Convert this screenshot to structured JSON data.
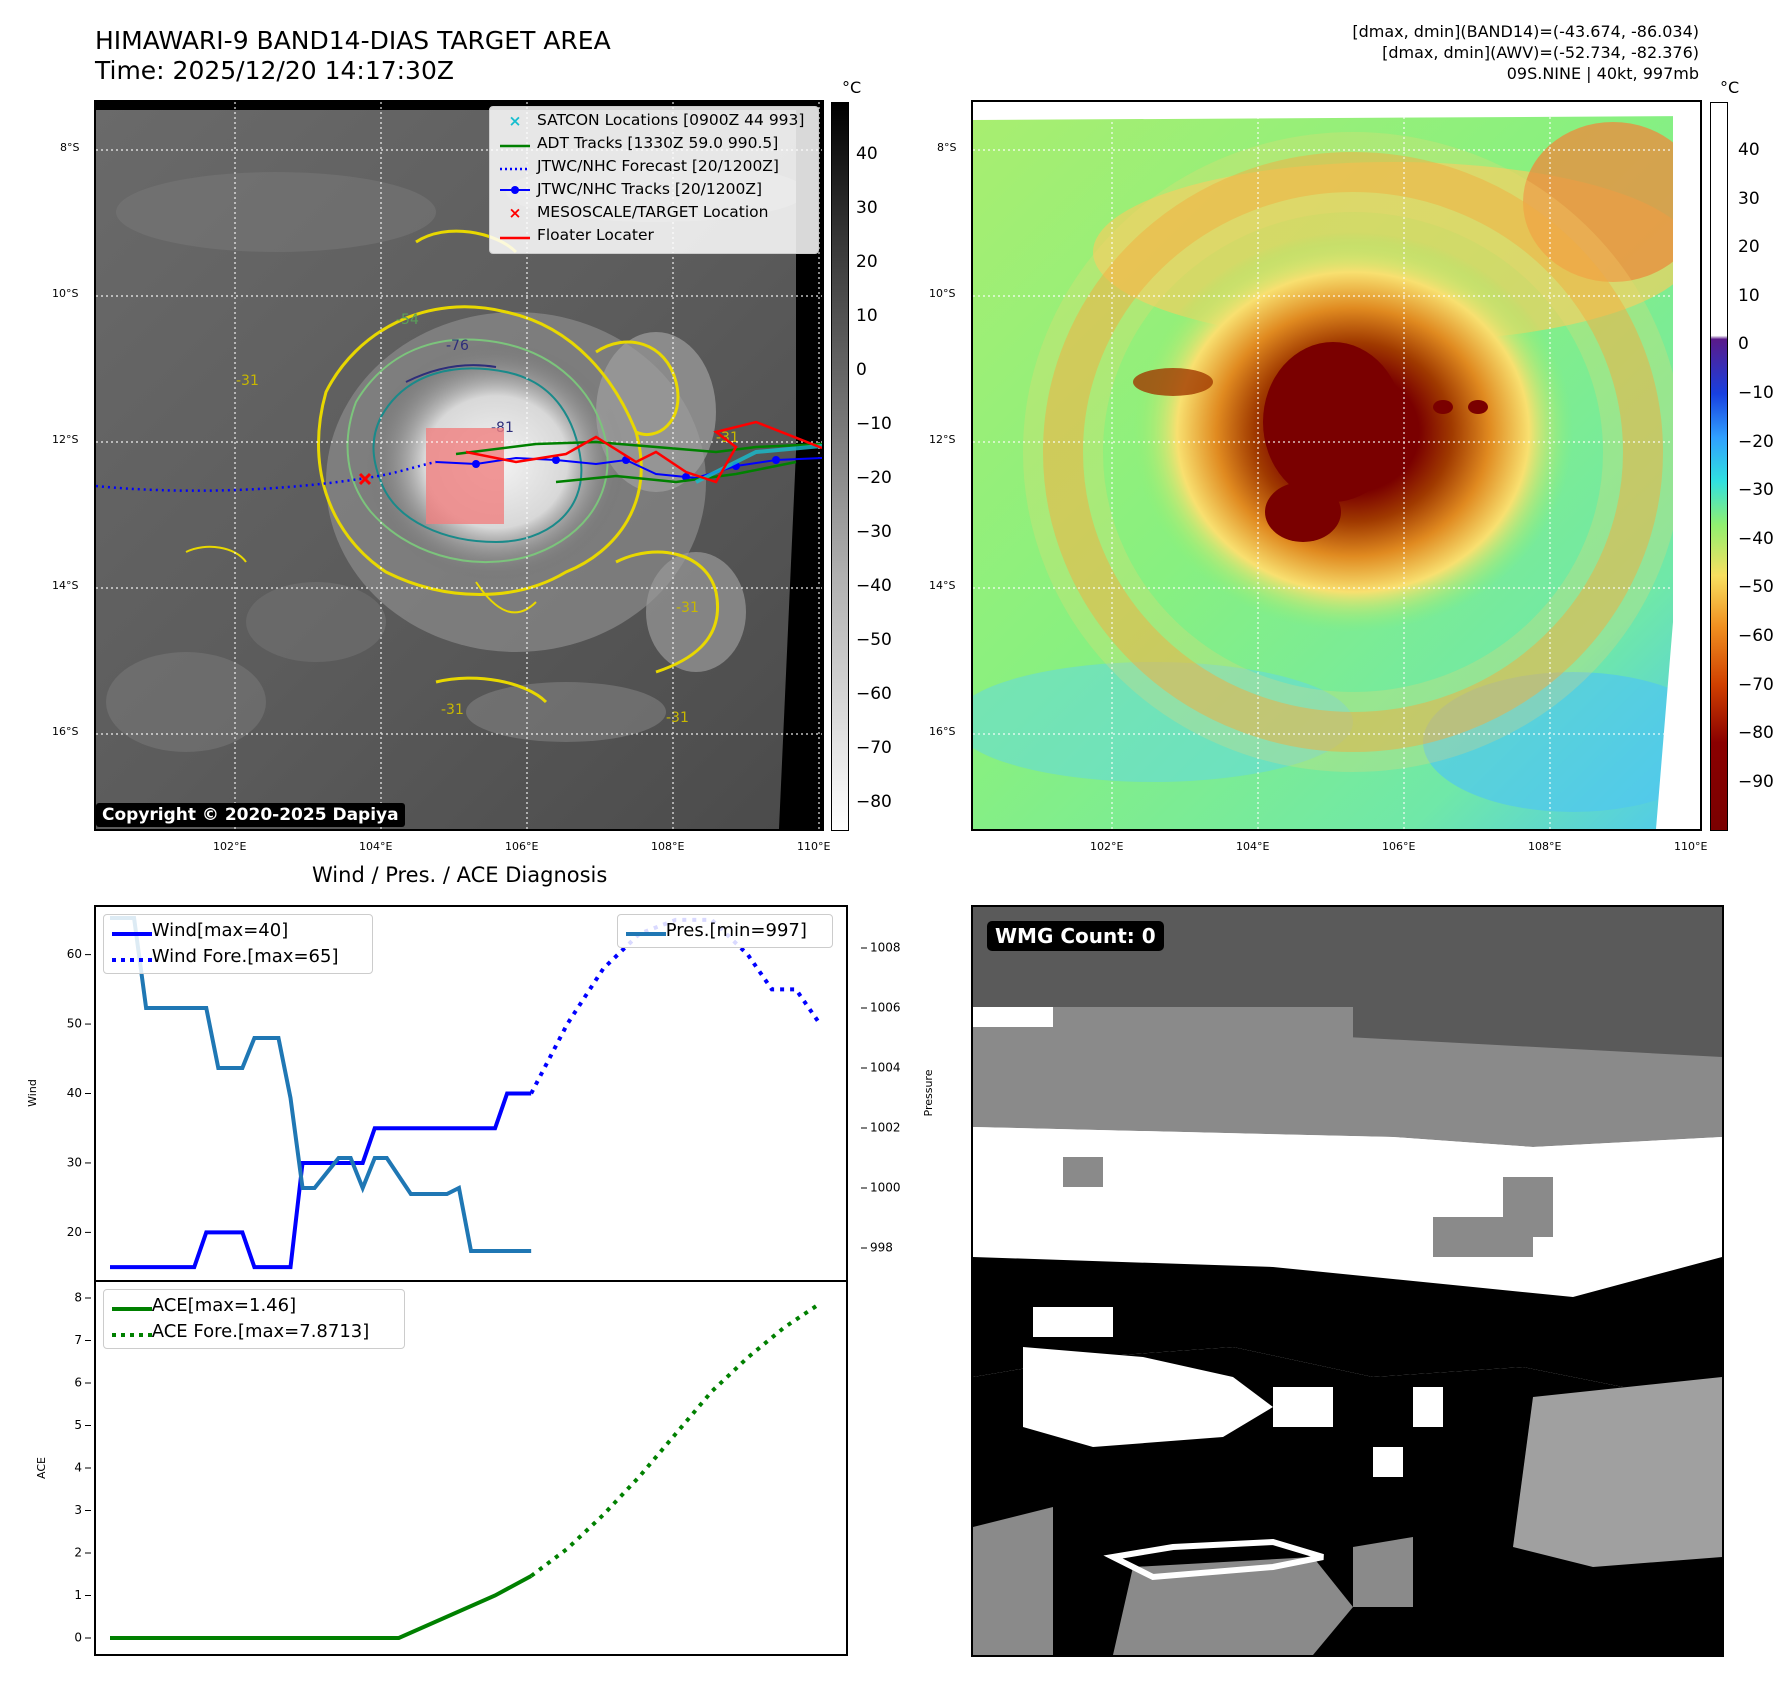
{
  "header": {
    "title_line1": "HIMAWARI-9 BAND14-DIAS TARGET AREA",
    "title_line2": "Time: 2025/12/20 14:17:30Z",
    "info_line1": "[dmax, dmin](BAND14)=(-43.674, -86.034)",
    "info_line2": "[dmax, dmin](AWV)=(-52.734, -82.376)",
    "info_line3": "09S.NINE | 40kt, 997mb"
  },
  "map": {
    "lat_labels": [
      "8°S",
      "10°S",
      "12°S",
      "14°S",
      "16°S"
    ],
    "lon_labels": [
      "102°E",
      "104°E",
      "106°E",
      "108°E",
      "110°E"
    ],
    "copyright": "Copyright © 2020-2025 Dapiya",
    "contour_labels": [
      "-76",
      "-54",
      "-31",
      "-31",
      "-31",
      "-81",
      "-31",
      "-31"
    ]
  },
  "legend": {
    "items": [
      {
        "label": "SATCON Locations [0900Z 44 993]",
        "color": "#17becf",
        "symbol": "x"
      },
      {
        "label": "ADT Tracks [1330Z 59.0 990.5]",
        "color": "#008000",
        "symbol": "line"
      },
      {
        "label": "JTWC/NHC Forecast [20/1200Z]",
        "color": "#0000ff",
        "symbol": "dotted"
      },
      {
        "label": "JTWC/NHC Tracks [20/1200Z]",
        "color": "#0000ff",
        "symbol": "line-dot"
      },
      {
        "label": "MESOSCALE/TARGET Location",
        "color": "#ff0000",
        "symbol": "x"
      },
      {
        "label": "Floater Locater",
        "color": "#ff0000",
        "symbol": "line"
      }
    ]
  },
  "colorbar_gray": {
    "unit": "°C",
    "ticks": [
      "40",
      "30",
      "20",
      "10",
      "0",
      "−10",
      "−20",
      "−30",
      "−40",
      "−50",
      "−60",
      "−70",
      "−80"
    ]
  },
  "colorbar_color": {
    "unit": "°C",
    "ticks": [
      "40",
      "30",
      "20",
      "10",
      "0",
      "−10",
      "−20",
      "−30",
      "−40",
      "−50",
      "−60",
      "−70",
      "−80",
      "−90"
    ]
  },
  "wmg": {
    "label": "WMG Count: 0"
  },
  "diagnosis": {
    "title": "Wind / Pres. / ACE Diagnosis",
    "wind_ylabel": "Wind",
    "pres_ylabel": "Pressure",
    "ace_ylabel": "ACE",
    "legend_wind": "Wind[max=40]",
    "legend_wind_fore": "Wind Fore.[max=65]",
    "legend_pres": "Pres.[min=997]",
    "legend_ace": "ACE[max=1.46]",
    "legend_ace_fore": "ACE Fore.[max=7.8713]",
    "wind_ticks": [
      "60",
      "50",
      "40",
      "30",
      "20"
    ],
    "pres_ticks": [
      "1008",
      "1006",
      "1004",
      "1002",
      "1000",
      "998"
    ],
    "ace_ticks": [
      "8",
      "7",
      "6",
      "5",
      "4",
      "3",
      "2",
      "1",
      "0"
    ]
  },
  "chart_data": [
    {
      "type": "line",
      "title": "Wind / Pres. / ACE Diagnosis",
      "ylabel": "Wind",
      "ylabel_right": "Pressure",
      "ylim": [
        13,
        67
      ],
      "ylim_right": [
        996.9,
        1009.4
      ],
      "series": [
        {
          "name": "Wind[max=40]",
          "color": "#0000ff",
          "style": "solid",
          "x": [
            0,
            14,
            16,
            22,
            24,
            30,
            32,
            34,
            36,
            38,
            40,
            42,
            44,
            46,
            48,
            50,
            52,
            54,
            56,
            58,
            60,
            62,
            64,
            66,
            68,
            70
          ],
          "values": [
            15,
            15,
            20,
            20,
            15,
            15,
            30,
            30,
            30,
            30,
            30,
            30,
            35,
            35,
            35,
            35,
            35,
            35,
            35,
            35,
            35,
            35,
            35,
            40,
            40,
            40
          ]
        },
        {
          "name": "Wind Fore.[max=65]",
          "color": "#0000ff",
          "style": "dotted",
          "x": [
            70,
            76,
            82,
            88,
            94,
            100,
            106,
            110,
            114,
            118
          ],
          "values": [
            40,
            50,
            58,
            63,
            65,
            65,
            60,
            55,
            55,
            50
          ]
        },
        {
          "name": "Pres.[min=997]",
          "color": "#1f77b4",
          "style": "solid",
          "axis": "right",
          "x": [
            0,
            4,
            6,
            16,
            18,
            22,
            24,
            28,
            30,
            32,
            34,
            38,
            40,
            42,
            44,
            46,
            50,
            52,
            56,
            58,
            60,
            62,
            64,
            70
          ],
          "values": [
            1009,
            1009,
            1006,
            1006,
            1004,
            1004,
            1005,
            1005,
            1003,
            1000,
            1000,
            1001,
            1001,
            1000,
            1001,
            1001,
            999.8,
            999.8,
            999.8,
            1000,
            997.9,
            997.9,
            997.9,
            997.9
          ]
        }
      ]
    },
    {
      "type": "line",
      "ylabel": "ACE",
      "ylim": [
        -0.4,
        8.4
      ],
      "series": [
        {
          "name": "ACE[max=1.46]",
          "color": "#008000",
          "style": "solid",
          "x": [
            0,
            48,
            64,
            70
          ],
          "values": [
            0,
            0,
            1.0,
            1.46
          ]
        },
        {
          "name": "ACE Fore.[max=7.8713]",
          "color": "#008000",
          "style": "dotted",
          "x": [
            70,
            76,
            82,
            88,
            94,
            100,
            106,
            112,
            118
          ],
          "values": [
            1.46,
            2.1,
            2.9,
            3.8,
            4.8,
            5.8,
            6.6,
            7.3,
            7.87
          ]
        }
      ]
    }
  ]
}
